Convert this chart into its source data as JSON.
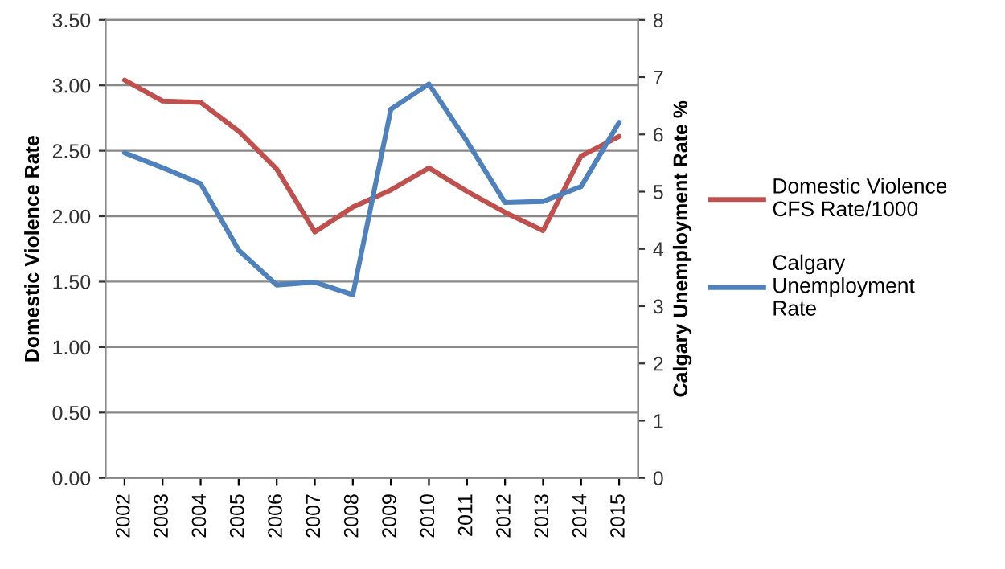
{
  "chart_data": {
    "type": "line",
    "ylabel": "Domestic Violence Rate",
    "y2label": "Calgary Unemployment Rate %",
    "categories": [
      "2002",
      "2003",
      "2004",
      "2005",
      "2006",
      "2007",
      "2008",
      "2009",
      "2010",
      "2011",
      "2012",
      "2013",
      "2014",
      "2015"
    ],
    "series": [
      {
        "name": "Domestic Violence\nCFS Rate/1000",
        "color": "#c0504d",
        "values": [
          3.04,
          2.88,
          2.87,
          2.65,
          2.36,
          1.88,
          2.07,
          2.2,
          2.37,
          2.19,
          2.03,
          1.89,
          2.46,
          2.61
        ]
      },
      {
        "name": "Calgary\nUnemployment\nRate",
        "color": "#4f81bd",
        "axis": "y2",
        "values": [
          5.68,
          5.42,
          5.14,
          3.98,
          3.37,
          3.42,
          3.2,
          6.44,
          6.88,
          5.88,
          4.81,
          4.83,
          5.09,
          6.21
        ]
      }
    ],
    "ylim": [
      0,
      3.5
    ],
    "yticks": [
      {
        "value": 0,
        "label": "0.00"
      },
      {
        "value": 0.5,
        "label": "0.50"
      },
      {
        "value": 1,
        "label": "1.00"
      },
      {
        "value": 1.5,
        "label": "1.50"
      },
      {
        "value": 2,
        "label": "2.00"
      },
      {
        "value": 2.5,
        "label": "2.50"
      },
      {
        "value": 3,
        "label": "3.00"
      },
      {
        "value": 3.5,
        "label": "3.50"
      }
    ],
    "y2lim": [
      0,
      8
    ],
    "y2ticks": [
      0,
      1,
      2,
      3,
      4,
      5,
      6,
      7,
      8
    ],
    "grid": "y",
    "legend": "right",
    "marker": "none",
    "line_style": "solid"
  }
}
